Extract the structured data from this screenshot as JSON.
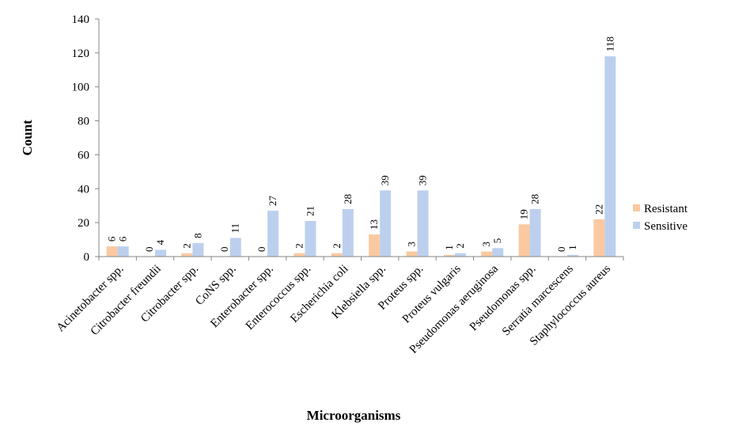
{
  "chart_data": {
    "type": "bar",
    "title": "",
    "xlabel": "Microorganisms",
    "ylabel": "Count",
    "ylim": [
      0,
      140
    ],
    "yticks": [
      0,
      20,
      40,
      60,
      80,
      100,
      120,
      140
    ],
    "grid": false,
    "legend_position": "right",
    "categories": [
      "Acinetobacter spp.",
      "Citrobacter freundii",
      "Citrobacter spp.",
      "CoNS spp.",
      "Enterobacter spp.",
      "Enterococcus spp.",
      "Escherichia coli",
      "Klebsiella spp.",
      "Proteus spp.",
      "Proteus vulgaris",
      "Pseudomonas aeruginosa",
      "Pseudomonas spp.",
      "Serratia marcescens",
      "Staphylococcus aureus"
    ],
    "series": [
      {
        "name": "Resistant",
        "color": "#FAC9A1",
        "values": [
          6,
          0,
          2,
          0,
          0,
          2,
          2,
          13,
          3,
          1,
          3,
          19,
          0,
          22
        ]
      },
      {
        "name": "Sensitive",
        "color": "#BCD0EE",
        "values": [
          6,
          4,
          8,
          11,
          27,
          21,
          28,
          39,
          39,
          2,
          5,
          28,
          1,
          118
        ]
      }
    ]
  }
}
